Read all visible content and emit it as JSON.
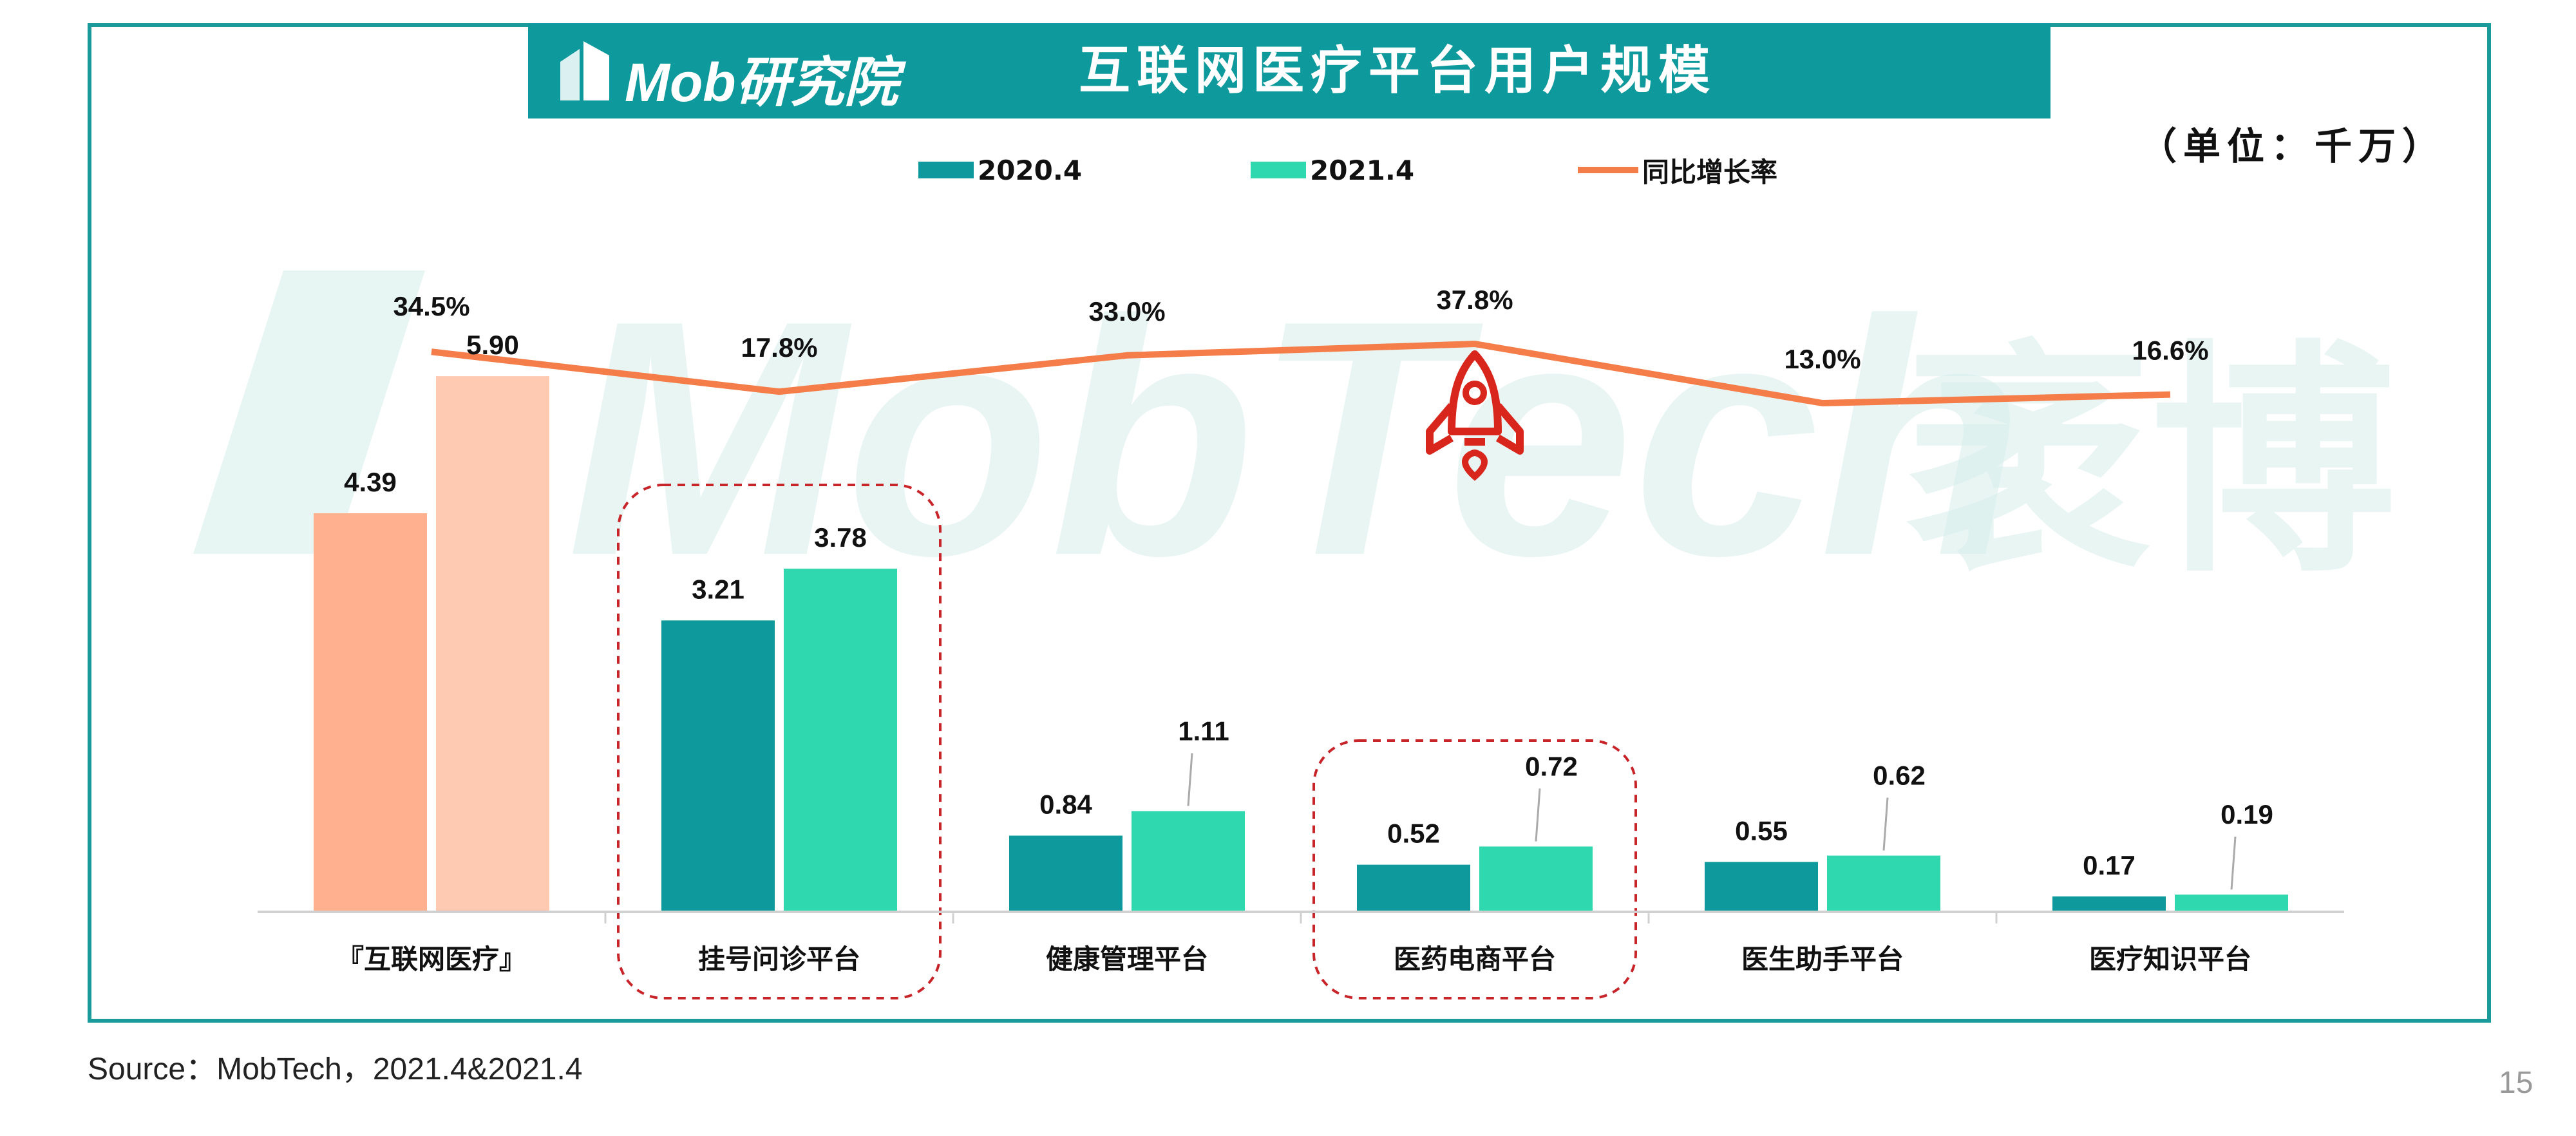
{
  "header": {
    "logo_text": "Mob研究院",
    "title": "互联网医疗平台用户规模",
    "unit": "（单位：千万）"
  },
  "legend": {
    "series_a": "2020.4",
    "series_b": "2021.4",
    "line": "同比增长率"
  },
  "watermark": {
    "text_latin": "MobTech",
    "text_cn": "袤博"
  },
  "footer": {
    "source": "Source：MobTech，2021.4&2021.4",
    "page_number": "15"
  },
  "colors": {
    "accent": "#0e9a9c",
    "series_a_default": "#0e9a9c",
    "series_b_default": "#2fd8ae",
    "series_a_highlight": "#ffb08e",
    "series_b_highlight": "#ffc9b2",
    "growth_line": "#f47d4a",
    "highlight_box": "#c8252b",
    "rocket": "#d8261c"
  },
  "chart_data": {
    "type": "bar",
    "categories": [
      "『互联网医疗』",
      "挂号问诊平台",
      "健康管理平台",
      "医药电商平台",
      "医生助手平台",
      "医疗知识平台"
    ],
    "series": [
      {
        "name": "2020.4",
        "values": [
          4.39,
          3.21,
          0.84,
          0.52,
          0.55,
          0.17
        ],
        "labels": [
          "4.39",
          "3.21",
          "0.84",
          "0.52",
          "0.55",
          "0.17"
        ]
      },
      {
        "name": "2021.4",
        "values": [
          5.9,
          3.78,
          1.11,
          0.72,
          0.62,
          0.19
        ],
        "labels": [
          "5.90",
          "3.78",
          "1.11",
          "0.72",
          "0.62",
          "0.19"
        ]
      }
    ],
    "line_series": {
      "name": "同比增长率",
      "values": [
        34.5,
        17.8,
        33.0,
        37.8,
        13.0,
        16.6
      ],
      "labels": [
        "34.5%",
        "17.8%",
        "33.0%",
        "37.8%",
        "13.0%",
        "16.6%"
      ]
    },
    "highlighted_categories": [
      "挂号问诊平台",
      "医药电商平台"
    ],
    "ylim": [
      0,
      7
    ],
    "grid": false,
    "legend_position": "top"
  }
}
